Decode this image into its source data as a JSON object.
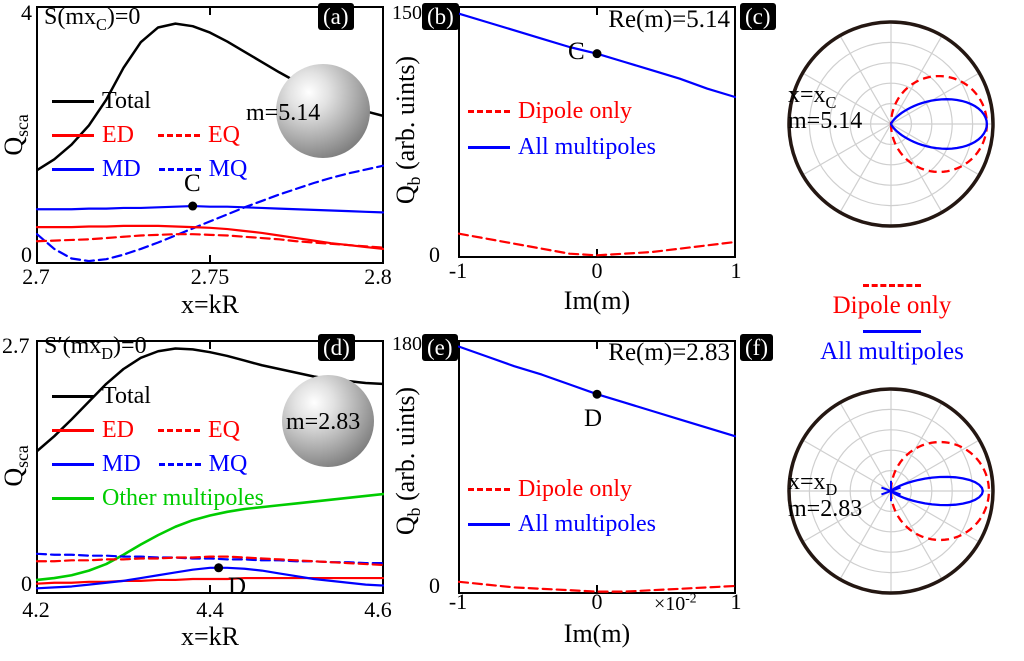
{
  "figure": {
    "panel_labels": [
      "(a)",
      "(b)",
      "(c)",
      "(d)",
      "(e)",
      "(f)"
    ]
  },
  "colors": {
    "black": "#000000",
    "red": "#ff0000",
    "blue": "#0000ff",
    "green": "#00cc00",
    "polar_outer": "#241712",
    "polar_grid": "#cfcfcf"
  },
  "radiation_legend": {
    "dipole": "Dipole only",
    "all": "All multipoles"
  },
  "chart_data": [
    {
      "id": "panel-a",
      "type": "line",
      "annotation": {
        "pre": "S(mx",
        "sub": "C",
        "post": ")=0"
      },
      "ylabel": {
        "base": "Q",
        "sub": "sca",
        "post": ""
      },
      "xlabel": "x=kR",
      "xlim": [
        2.7,
        2.8
      ],
      "ylim": [
        0,
        4
      ],
      "xticks": [
        2.7,
        2.75,
        2.8
      ],
      "yticks": [
        0,
        4
      ],
      "xtick_labels": [
        "2.7",
        "2.75",
        "2.8"
      ],
      "ytick_labels": [
        "0",
        "4"
      ],
      "sphere_label": "m=5.14",
      "legend": {
        "total": "Total",
        "ed": "ED",
        "eq": "EQ",
        "md": "MD",
        "mq": "MQ"
      },
      "point": {
        "label": "C",
        "x": 2.745,
        "y": 0.89
      },
      "x": [
        2.7,
        2.705,
        2.71,
        2.715,
        2.72,
        2.725,
        2.73,
        2.735,
        2.74,
        2.745,
        2.75,
        2.755,
        2.76,
        2.765,
        2.77,
        2.775,
        2.78,
        2.785,
        2.79,
        2.795,
        2.8
      ],
      "series": [
        {
          "name": "MQ",
          "color": "#0000ff",
          "dash": true,
          "y": [
            0.45,
            0.22,
            0.07,
            0.03,
            0.06,
            0.13,
            0.22,
            0.32,
            0.43,
            0.54,
            0.65,
            0.76,
            0.87,
            0.97,
            1.07,
            1.16,
            1.25,
            1.33,
            1.4,
            1.46,
            1.52
          ]
        },
        {
          "name": "EQ",
          "color": "#ff0000",
          "dash": true,
          "y": [
            0.34,
            0.35,
            0.36,
            0.37,
            0.39,
            0.41,
            0.43,
            0.44,
            0.45,
            0.45,
            0.44,
            0.43,
            0.41,
            0.39,
            0.37,
            0.34,
            0.32,
            0.3,
            0.28,
            0.26,
            0.24
          ]
        },
        {
          "name": "ED",
          "color": "#ff0000",
          "dash": false,
          "y": [
            0.56,
            0.56,
            0.56,
            0.57,
            0.57,
            0.58,
            0.58,
            0.58,
            0.57,
            0.56,
            0.55,
            0.53,
            0.5,
            0.47,
            0.43,
            0.39,
            0.35,
            0.31,
            0.28,
            0.25,
            0.22
          ]
        },
        {
          "name": "MD",
          "color": "#0000ff",
          "dash": false,
          "y": [
            0.84,
            0.84,
            0.84,
            0.85,
            0.85,
            0.86,
            0.86,
            0.87,
            0.88,
            0.89,
            0.88,
            0.88,
            0.87,
            0.86,
            0.85,
            0.84,
            0.83,
            0.82,
            0.81,
            0.8,
            0.79
          ]
        },
        {
          "name": "Total",
          "color": "#000000",
          "dash": false,
          "width": 2.5,
          "y": [
            1.45,
            1.62,
            1.85,
            2.15,
            2.55,
            3.05,
            3.45,
            3.68,
            3.74,
            3.7,
            3.6,
            3.46,
            3.3,
            3.14,
            2.98,
            2.83,
            2.69,
            2.57,
            2.46,
            2.37,
            2.3
          ]
        }
      ]
    },
    {
      "id": "panel-b",
      "type": "line",
      "title": "Re(m)=5.14",
      "ylabel": {
        "base": "Q",
        "sub": "b",
        "post": " (arb. uints)"
      },
      "xlabel": "Im(m)",
      "xlim": [
        -1,
        1
      ],
      "ylim": [
        0,
        150
      ],
      "xticks": [
        -1,
        0,
        1
      ],
      "yticks": [
        0,
        150
      ],
      "xtick_labels": [
        "-1",
        "0",
        "1"
      ],
      "ytick_labels": [
        "0",
        "150"
      ],
      "legend": {
        "dipole": "Dipole only",
        "all": "All multipoles"
      },
      "point": {
        "label": "C",
        "x": 0,
        "y": 122
      },
      "x": [
        -1,
        -0.8,
        -0.6,
        -0.4,
        -0.2,
        0,
        0.2,
        0.4,
        0.6,
        0.8,
        1
      ],
      "series": [
        {
          "name": "Dipole only",
          "color": "#ff0000",
          "dash": true,
          "y": [
            14,
            11,
            8,
            5,
            2,
            1,
            2,
            3,
            5,
            7,
            9
          ]
        },
        {
          "name": "All multipoles",
          "color": "#0000ff",
          "dash": false,
          "y": [
            146,
            141,
            136,
            131,
            126,
            122,
            117,
            112,
            107,
            101,
            96
          ]
        }
      ]
    },
    {
      "id": "panel-c",
      "type": "polar",
      "labels": {
        "x_pre": "x=x",
        "x_sub": "C",
        "m": "m=5.14"
      },
      "grid": {
        "circles": [
          0.2,
          0.4,
          0.6,
          0.8
        ],
        "spoke_step_deg": 30
      },
      "series": [
        {
          "name": "Dipole only",
          "color": "#ff0000",
          "dash": true,
          "pattern": "cos",
          "exponent": 1,
          "scale": 0.94
        },
        {
          "name": "All multipoles",
          "color": "#0000ff",
          "dash": false,
          "pattern": "cos",
          "exponent": 5,
          "scale": 0.94
        }
      ]
    },
    {
      "id": "panel-d",
      "type": "line",
      "annotation": {
        "pre": "S′(mx",
        "sub": "D",
        "post": ")=0"
      },
      "ylabel": {
        "base": "Q",
        "sub": "sca",
        "post": ""
      },
      "xlabel": "x=kR",
      "xlim": [
        4.2,
        4.6
      ],
      "ylim": [
        0,
        2.7
      ],
      "xticks": [
        4.2,
        4.4,
        4.6
      ],
      "yticks": [
        0,
        2.7
      ],
      "xtick_labels": [
        "4.2",
        "4.4",
        "4.6"
      ],
      "ytick_labels": [
        "0",
        "2.7"
      ],
      "sphere_label": "m=2.83",
      "legend": {
        "total": "Total",
        "ed": "ED",
        "eq": "EQ",
        "md": "MD",
        "mq": "MQ",
        "other": "Other multipoles"
      },
      "point": {
        "label": "D",
        "x": 4.41,
        "y": 0.27
      },
      "x": [
        4.2,
        4.22,
        4.24,
        4.26,
        4.28,
        4.3,
        4.32,
        4.34,
        4.36,
        4.38,
        4.4,
        4.42,
        4.44,
        4.46,
        4.48,
        4.5,
        4.52,
        4.54,
        4.56,
        4.58,
        4.6
      ],
      "series": [
        {
          "name": "Other multipoles",
          "color": "#00cc00",
          "dash": false,
          "width": 2.6,
          "y": [
            0.14,
            0.16,
            0.19,
            0.24,
            0.31,
            0.41,
            0.52,
            0.62,
            0.71,
            0.78,
            0.83,
            0.87,
            0.9,
            0.92,
            0.94,
            0.96,
            0.98,
            1.0,
            1.02,
            1.04,
            1.06
          ]
        },
        {
          "name": "MQ",
          "color": "#0000ff",
          "dash": true,
          "y": [
            0.42,
            0.41,
            0.41,
            0.4,
            0.4,
            0.39,
            0.39,
            0.38,
            0.38,
            0.37,
            0.37,
            0.36,
            0.36,
            0.35,
            0.35,
            0.34,
            0.34,
            0.33,
            0.33,
            0.32,
            0.32
          ]
        },
        {
          "name": "EQ",
          "color": "#ff0000",
          "dash": true,
          "y": [
            0.34,
            0.34,
            0.35,
            0.35,
            0.36,
            0.36,
            0.37,
            0.37,
            0.38,
            0.38,
            0.39,
            0.39,
            0.38,
            0.37,
            0.36,
            0.35,
            0.34,
            0.33,
            0.32,
            0.31,
            0.3
          ]
        },
        {
          "name": "ED",
          "color": "#ff0000",
          "dash": false,
          "y": [
            0.1,
            0.11,
            0.11,
            0.12,
            0.12,
            0.13,
            0.13,
            0.14,
            0.14,
            0.15,
            0.15,
            0.15,
            0.16,
            0.16,
            0.16,
            0.16,
            0.16,
            0.16,
            0.16,
            0.16,
            0.16
          ]
        },
        {
          "name": "MD",
          "color": "#0000ff",
          "dash": false,
          "y": [
            0.05,
            0.06,
            0.07,
            0.09,
            0.11,
            0.13,
            0.16,
            0.19,
            0.22,
            0.25,
            0.27,
            0.27,
            0.26,
            0.24,
            0.21,
            0.18,
            0.15,
            0.13,
            0.11,
            0.09,
            0.08
          ]
        },
        {
          "name": "Total",
          "color": "#000000",
          "dash": false,
          "width": 2.5,
          "y": [
            1.52,
            1.68,
            1.86,
            2.05,
            2.24,
            2.4,
            2.52,
            2.59,
            2.62,
            2.61,
            2.58,
            2.54,
            2.49,
            2.44,
            2.4,
            2.36,
            2.32,
            2.29,
            2.27,
            2.25,
            2.24
          ]
        }
      ]
    },
    {
      "id": "panel-e",
      "type": "line",
      "title": "Re(m)=2.83",
      "ylabel": {
        "base": "Q",
        "sub": "b",
        "post": " (arb. uints)"
      },
      "xlabel": "Im(m)",
      "multiplier": {
        "pre": "×10",
        "sup": "-2"
      },
      "xlim": [
        -1,
        1
      ],
      "ylim": [
        0,
        180
      ],
      "xticks": [
        -1,
        0,
        1
      ],
      "yticks": [
        0,
        180
      ],
      "xtick_labels": [
        "-1",
        "0",
        "1"
      ],
      "ytick_labels": [
        "0",
        "180"
      ],
      "legend": {
        "dipole": "Dipole only",
        "all": "All multipoles"
      },
      "point": {
        "label": "D",
        "x": 0,
        "y": 142
      },
      "x": [
        -1,
        -0.8,
        -0.6,
        -0.4,
        -0.2,
        0,
        0.2,
        0.4,
        0.6,
        0.8,
        1
      ],
      "series": [
        {
          "name": "Dipole only",
          "color": "#ff0000",
          "dash": true,
          "y": [
            8,
            6,
            4,
            3,
            2,
            1,
            1,
            2,
            3,
            4,
            5
          ]
        },
        {
          "name": "All multipoles",
          "color": "#0000ff",
          "dash": false,
          "y": [
            176,
            169,
            162,
            156,
            149,
            142,
            136,
            130,
            124,
            118,
            112
          ]
        }
      ]
    },
    {
      "id": "panel-f",
      "type": "polar",
      "labels": {
        "x_pre": "x=x",
        "x_sub": "D",
        "m": "m=2.83"
      },
      "grid": {
        "circles": [
          0.2,
          0.4,
          0.6,
          0.8
        ],
        "spoke_step_deg": 30
      },
      "center_star": {
        "color": "#0000ff",
        "arm": 0.1
      },
      "series": [
        {
          "name": "Dipole only",
          "color": "#ff0000",
          "dash": true,
          "pattern": "cos",
          "exponent": 1,
          "scale": 0.96
        },
        {
          "name": "All multipoles",
          "color": "#0000ff",
          "dash": false,
          "pattern": "cos",
          "exponent": 15,
          "scale": 0.9
        }
      ]
    }
  ]
}
